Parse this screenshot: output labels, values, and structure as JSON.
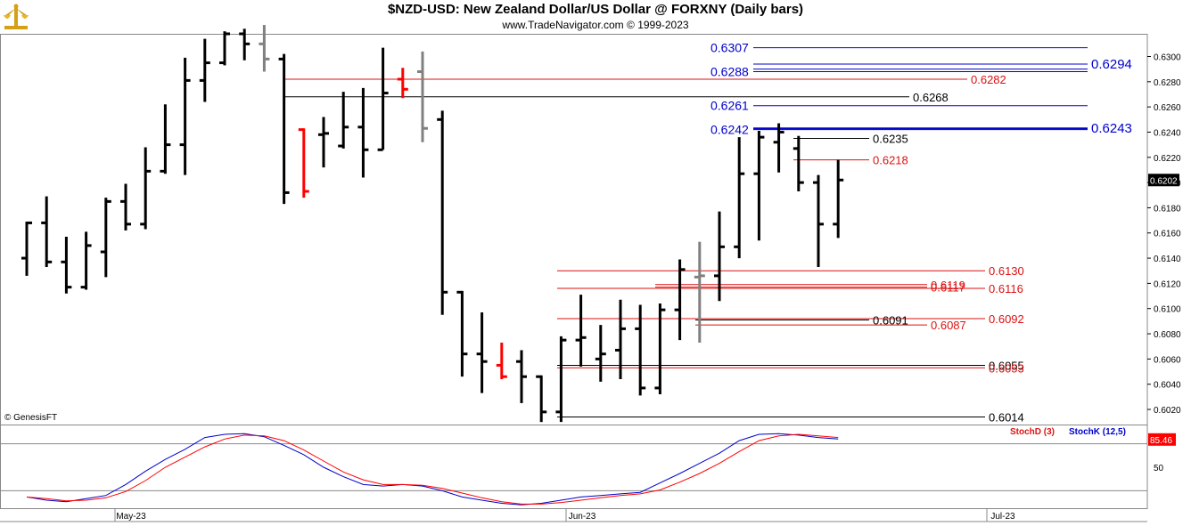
{
  "header": {
    "title": "$NZD-USD:  New Zealand Dollar/US Dollar @ FORXNY  (Daily bars)",
    "subtitle": "www.TradeNavigator.com © 1999-2023",
    "copyright": "© GenesisFT"
  },
  "colors": {
    "bar": "#000000",
    "down_bar": "#ff0000",
    "gray_bar": "#808080",
    "blue_level": "#0000cc",
    "red_level": "#dd1111",
    "black_level": "#000000",
    "stoch_k": "#0000cc",
    "stoch_d": "#dd1111",
    "price_tag": "#000000",
    "stoch_tag": "#ff0000"
  },
  "chart_data": [
    {
      "type": "ohlc",
      "title": "$NZD-USD:  New Zealand Dollar/US Dollar @ FORXNY  (Daily bars)",
      "y_axis": {
        "ticks": [
          "0.6020",
          "0.6040",
          "0.6060",
          "0.6080",
          "0.6100",
          "0.6120",
          "0.6140",
          "0.6160",
          "0.6180",
          "0.6200",
          "0.6220",
          "0.6240",
          "0.6260",
          "0.6280",
          "0.6300"
        ],
        "ylim": [
          0.6008,
          0.6318
        ]
      },
      "x_axis": {
        "labels": [
          "May-23",
          "Jun-23",
          "Jul-23"
        ]
      },
      "last_price_tag": "0.6202",
      "bars": [
        {
          "o": 0.614,
          "h": 0.6169,
          "l": 0.6126,
          "c": 0.6168,
          "color": "black"
        },
        {
          "o": 0.6168,
          "h": 0.6189,
          "l": 0.6133,
          "c": 0.6137,
          "color": "black"
        },
        {
          "o": 0.6137,
          "h": 0.6157,
          "l": 0.6112,
          "c": 0.6117,
          "color": "black"
        },
        {
          "o": 0.6117,
          "h": 0.6161,
          "l": 0.6115,
          "c": 0.615,
          "color": "black"
        },
        {
          "o": 0.6145,
          "h": 0.6188,
          "l": 0.6125,
          "c": 0.6185,
          "color": "black"
        },
        {
          "o": 0.6185,
          "h": 0.6199,
          "l": 0.6162,
          "c": 0.6167,
          "color": "black"
        },
        {
          "o": 0.6167,
          "h": 0.6228,
          "l": 0.6163,
          "c": 0.6209,
          "color": "black"
        },
        {
          "o": 0.6209,
          "h": 0.6262,
          "l": 0.6207,
          "c": 0.623,
          "color": "black"
        },
        {
          "o": 0.623,
          "h": 0.6299,
          "l": 0.6206,
          "c": 0.6281,
          "color": "black"
        },
        {
          "o": 0.6281,
          "h": 0.6314,
          "l": 0.6264,
          "c": 0.6295,
          "color": "black"
        },
        {
          "o": 0.6295,
          "h": 0.632,
          "l": 0.6293,
          "c": 0.6318,
          "color": "black"
        },
        {
          "o": 0.6318,
          "h": 0.6322,
          "l": 0.6297,
          "c": 0.631,
          "color": "black"
        },
        {
          "o": 0.631,
          "h": 0.6325,
          "l": 0.6288,
          "c": 0.6298,
          "color": "gray"
        },
        {
          "o": 0.6298,
          "h": 0.6302,
          "l": 0.6183,
          "c": 0.6192,
          "color": "black"
        },
        {
          "o": 0.6242,
          "h": 0.6243,
          "l": 0.6188,
          "c": 0.6193,
          "color": "red"
        },
        {
          "o": 0.6238,
          "h": 0.6252,
          "l": 0.6212,
          "c": 0.6239,
          "color": "black"
        },
        {
          "o": 0.6229,
          "h": 0.6272,
          "l": 0.6227,
          "c": 0.6244,
          "color": "black"
        },
        {
          "o": 0.6244,
          "h": 0.6275,
          "l": 0.6204,
          "c": 0.6226,
          "color": "black"
        },
        {
          "o": 0.6226,
          "h": 0.6307,
          "l": 0.6226,
          "c": 0.6271,
          "color": "black"
        },
        {
          "o": 0.6282,
          "h": 0.6291,
          "l": 0.6267,
          "c": 0.6274,
          "color": "red"
        },
        {
          "o": 0.6288,
          "h": 0.6304,
          "l": 0.6232,
          "c": 0.6243,
          "color": "gray"
        },
        {
          "o": 0.625,
          "h": 0.6257,
          "l": 0.6095,
          "c": 0.6113,
          "color": "black"
        },
        {
          "o": 0.6113,
          "h": 0.6114,
          "l": 0.6046,
          "c": 0.6064,
          "color": "black"
        },
        {
          "o": 0.6064,
          "h": 0.6097,
          "l": 0.6033,
          "c": 0.6058,
          "color": "black"
        },
        {
          "o": 0.6055,
          "h": 0.6073,
          "l": 0.6044,
          "c": 0.6046,
          "color": "red"
        },
        {
          "o": 0.6058,
          "h": 0.6067,
          "l": 0.6025,
          "c": 0.6046,
          "color": "black"
        },
        {
          "o": 0.6046,
          "h": 0.6047,
          "l": 0.601,
          "c": 0.6018,
          "color": "black"
        },
        {
          "o": 0.6018,
          "h": 0.6078,
          "l": 0.601,
          "c": 0.6075,
          "color": "black"
        },
        {
          "o": 0.6075,
          "h": 0.6111,
          "l": 0.6054,
          "c": 0.6077,
          "color": "black"
        },
        {
          "o": 0.606,
          "h": 0.6087,
          "l": 0.6042,
          "c": 0.6064,
          "color": "black"
        },
        {
          "o": 0.6067,
          "h": 0.6107,
          "l": 0.6044,
          "c": 0.6084,
          "color": "black"
        },
        {
          "o": 0.6084,
          "h": 0.6103,
          "l": 0.6031,
          "c": 0.6037,
          "color": "black"
        },
        {
          "o": 0.6037,
          "h": 0.6104,
          "l": 0.6032,
          "c": 0.6099,
          "color": "black"
        },
        {
          "o": 0.6099,
          "h": 0.6139,
          "l": 0.6075,
          "c": 0.6131,
          "color": "black"
        },
        {
          "o": 0.6125,
          "h": 0.6153,
          "l": 0.6073,
          "c": 0.6126,
          "color": "gray"
        },
        {
          "o": 0.6126,
          "h": 0.6177,
          "l": 0.6106,
          "c": 0.6149,
          "color": "black"
        },
        {
          "o": 0.6149,
          "h": 0.6236,
          "l": 0.614,
          "c": 0.6207,
          "color": "black"
        },
        {
          "o": 0.6207,
          "h": 0.6241,
          "l": 0.6154,
          "c": 0.6236,
          "color": "black"
        },
        {
          "o": 0.6232,
          "h": 0.6247,
          "l": 0.6208,
          "c": 0.624,
          "color": "black"
        },
        {
          "o": 0.6227,
          "h": 0.6237,
          "l": 0.6193,
          "c": 0.62,
          "color": "black"
        },
        {
          "o": 0.62,
          "h": 0.6206,
          "l": 0.6133,
          "c": 0.6167,
          "color": "black"
        },
        {
          "o": 0.6167,
          "h": 0.6218,
          "l": 0.6156,
          "c": 0.6202,
          "color": "black"
        }
      ],
      "levels": [
        {
          "value": 0.6307,
          "label": "0.6307",
          "color": "blue",
          "x0": 0.5,
          "x1": 1.0,
          "label_side": "left"
        },
        {
          "value": 0.6294,
          "label": "0.6294",
          "color": "blue",
          "x0": 0.5,
          "x1": 1.0,
          "label_side": "right"
        },
        {
          "value": 0.629,
          "label": "",
          "color": "blue",
          "x0": 0.5,
          "x1": 1.0,
          "label_side": "none"
        },
        {
          "value": 0.6288,
          "label": "0.6288",
          "color": "blue",
          "x0": 0.5,
          "x1": 1.0,
          "label_side": "left"
        },
        {
          "value": 0.6282,
          "label": "0.6282",
          "color": "red",
          "x0": 0.0,
          "x1": 0.65,
          "label_side": "right"
        },
        {
          "value": 0.6268,
          "label": "0.6268",
          "color": "black",
          "x0": 0.0,
          "x1": 0.55,
          "label_side": "right"
        },
        {
          "value": 0.6261,
          "label": "0.6261",
          "color": "blue",
          "x0": 0.5,
          "x1": 1.0,
          "label_side": "left"
        },
        {
          "value": 0.6243,
          "label": "0.6243",
          "color": "blue",
          "x0": 0.5,
          "x1": 1.0,
          "label_side": "right"
        },
        {
          "value": 0.6242,
          "label": "0.6242",
          "color": "blue",
          "x0": 0.5,
          "x1": 1.0,
          "label_side": "left"
        },
        {
          "value": 0.6235,
          "label": "0.6235",
          "color": "black",
          "x0": 0.0,
          "x1": 0.3,
          "label_side": "right"
        },
        {
          "value": 0.6218,
          "label": "0.6218",
          "color": "red",
          "x0": 0.0,
          "x1": 0.3,
          "label_side": "right"
        },
        {
          "value": 0.613,
          "label": "0.6130",
          "color": "red",
          "x0": 0.0,
          "x1": 1.0,
          "label_side": "right"
        },
        {
          "value": 0.6119,
          "label": "0.6119",
          "color": "red",
          "x0": 0.0,
          "x1": 0.6,
          "label_side": "right"
        },
        {
          "value": 0.6117,
          "label": "0.6117",
          "color": "red",
          "x0": 0.0,
          "x1": 0.6,
          "label_side": "right"
        },
        {
          "value": 0.6116,
          "label": "0.6116",
          "color": "red",
          "x0": 0.0,
          "x1": 1.0,
          "label_side": "right"
        },
        {
          "value": 0.6092,
          "label": "0.6092",
          "color": "red",
          "x0": 0.0,
          "x1": 1.0,
          "label_side": "right"
        },
        {
          "value": 0.6091,
          "label": "0.6091",
          "color": "black",
          "x0": 0.0,
          "x1": 0.6,
          "label_side": "right"
        },
        {
          "value": 0.6087,
          "label": "0.6087",
          "color": "red",
          "x0": 0.0,
          "x1": 0.6,
          "label_side": "right"
        },
        {
          "value": 0.6055,
          "label": "0.6055",
          "color": "black",
          "x0": 0.0,
          "x1": 1.0,
          "label_side": "right"
        },
        {
          "value": 0.6053,
          "label": "0.6053",
          "color": "red",
          "x0": 0.0,
          "x1": 1.0,
          "label_side": "right"
        },
        {
          "value": 0.6014,
          "label": "0.6014",
          "color": "black",
          "x0": 0.0,
          "x1": 1.0,
          "label_side": "right"
        }
      ]
    },
    {
      "type": "line",
      "title": "",
      "y_axis": {
        "ticks": [
          "50"
        ],
        "ylim": [
          0,
          100
        ],
        "guide_lines": [
          80,
          20
        ]
      },
      "series": [
        {
          "name": "StochK (12,5)",
          "color": "blue",
          "values": [
            12,
            8,
            6,
            10,
            14,
            28,
            45,
            60,
            73,
            88,
            92,
            93,
            89,
            78,
            66,
            50,
            38,
            28,
            26,
            28,
            26,
            20,
            12,
            8,
            4,
            2,
            4,
            8,
            12,
            14,
            16,
            18,
            30,
            42,
            55,
            68,
            84,
            92,
            93,
            91,
            88,
            86
          ]
        },
        {
          "name": "StochD (3)",
          "color": "red",
          "values": [
            12,
            10,
            7,
            8,
            11,
            19,
            33,
            50,
            63,
            76,
            86,
            91,
            90,
            84,
            72,
            58,
            44,
            34,
            28,
            28,
            27,
            23,
            17,
            11,
            6,
            3,
            3,
            5,
            8,
            11,
            14,
            16,
            21,
            31,
            42,
            55,
            70,
            84,
            90,
            92,
            90,
            88
          ]
        }
      ],
      "last_value_tag": "85.46",
      "legend": [
        "StochD (3)",
        "StochK (12,5)"
      ]
    }
  ]
}
